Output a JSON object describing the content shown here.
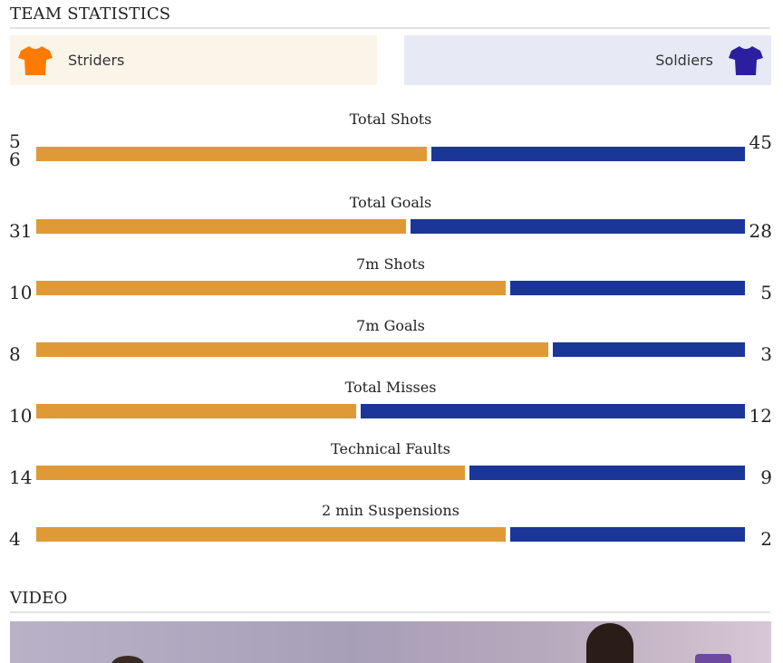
{
  "sections": {
    "team_statistics_title": "TEAM STATISTICS",
    "video_title": "VIDEO"
  },
  "teams": {
    "home": {
      "name": "Striders",
      "color": "#ff7a00"
    },
    "away": {
      "name": "Soldiers",
      "color": "#2b1fa0"
    }
  },
  "colors": {
    "home_bar": "#df9a37",
    "away_bar": "#1b3699"
  },
  "stats": [
    {
      "label": "Total Shots",
      "home": 56,
      "away": 45,
      "home_display": "56",
      "away_display": "45"
    },
    {
      "label": "Total Goals",
      "home": 31,
      "away": 28,
      "home_display": "31",
      "away_display": "28"
    },
    {
      "label": "7m Shots",
      "home": 10,
      "away": 5,
      "home_display": "10",
      "away_display": "5"
    },
    {
      "label": "7m Goals",
      "home": 8,
      "away": 3,
      "home_display": "8",
      "away_display": "3"
    },
    {
      "label": "Total Misses",
      "home": 10,
      "away": 12,
      "home_display": "10",
      "away_display": "12"
    },
    {
      "label": "Technical Faults",
      "home": 14,
      "away": 9,
      "home_display": "14",
      "away_display": "9"
    },
    {
      "label": "2 min Suspensions",
      "home": 4,
      "away": 2,
      "home_display": "4",
      "away_display": "2"
    }
  ]
}
